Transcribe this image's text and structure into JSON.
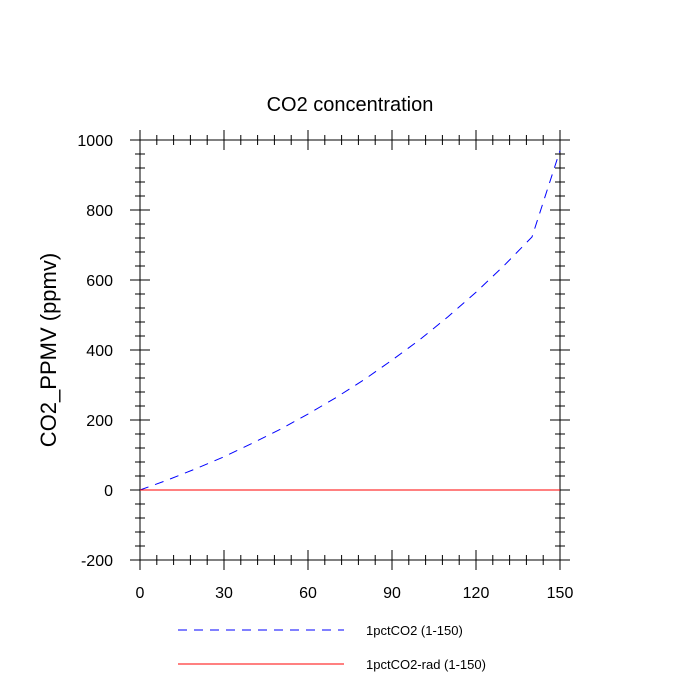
{
  "chart_data": {
    "type": "line",
    "title": "CO2 concentration",
    "xlabel": "",
    "ylabel": "CO2_PPMV  (ppmv)",
    "xlim": [
      0,
      150
    ],
    "ylim": [
      -200,
      1000
    ],
    "x_ticks": [
      0,
      30,
      60,
      90,
      120,
      150
    ],
    "y_ticks": [
      -200,
      0,
      200,
      400,
      600,
      800,
      1000
    ],
    "grid": false,
    "legend_position": "bottom",
    "series": [
      {
        "name": "1pctCO2 (1-150)",
        "color": "#0000ff",
        "style": "dashed",
        "x": [
          0,
          10,
          20,
          30,
          40,
          50,
          60,
          70,
          80,
          90,
          100,
          110,
          120,
          130,
          140,
          150
        ],
        "y": [
          0,
          29,
          61,
          95,
          133,
          173,
          217,
          264,
          315,
          371,
          430,
          495,
          565,
          641,
          723,
          970
        ]
      },
      {
        "name": "1pctCO2-rad (1-150)",
        "color": "#ff0000",
        "style": "solid",
        "x": [
          0,
          150
        ],
        "y": [
          0,
          0
        ]
      }
    ]
  }
}
